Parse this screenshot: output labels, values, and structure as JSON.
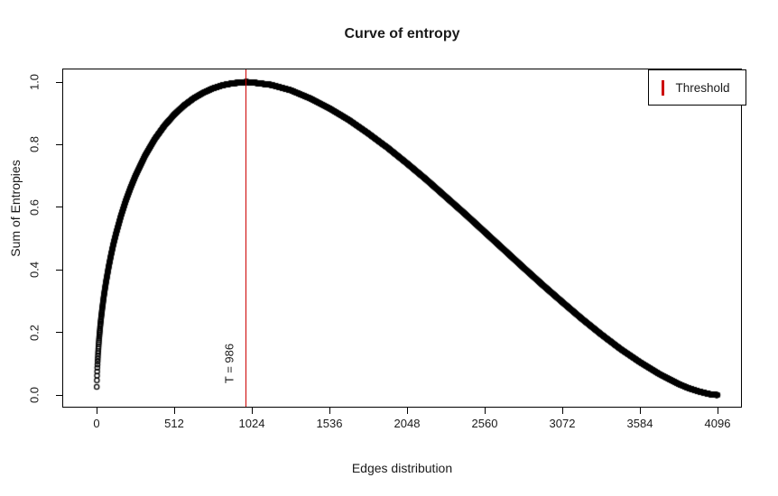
{
  "window": {
    "background": "#ffffff"
  },
  "chart_data": {
    "type": "scatter",
    "title": "Curve of entropy",
    "xlabel": "Edges distribution",
    "ylabel": "Sum of Entropies",
    "xlim": [
      0,
      4096
    ],
    "ylim": [
      0.0,
      1.0
    ],
    "x_ticks": [
      0,
      512,
      1024,
      1536,
      2048,
      2560,
      3072,
      3584,
      4096
    ],
    "y_ticks": [
      0.0,
      0.2,
      0.4,
      0.6,
      0.8,
      1.0
    ],
    "grid": false,
    "marker": "open-circle",
    "point_color": "#000000",
    "n_points": 4096,
    "threshold": {
      "x": 986,
      "label": "T = 986",
      "color": "#cc0000"
    },
    "legend": {
      "position": "topright",
      "entries": [
        {
          "label": "Threshold",
          "marker": "vertical-bar",
          "color": "#cc0000"
        }
      ]
    },
    "series": [
      {
        "name": "Sum of Entropies",
        "points": [
          [
            1,
            0.026
          ],
          [
            2,
            0.047
          ],
          [
            3,
            0.062
          ],
          [
            4,
            0.075
          ],
          [
            5,
            0.087
          ],
          [
            6,
            0.097
          ],
          [
            7,
            0.107
          ],
          [
            8,
            0.116
          ],
          [
            10,
            0.133
          ],
          [
            12,
            0.148
          ],
          [
            14,
            0.162
          ],
          [
            16,
            0.175
          ],
          [
            20,
            0.198
          ],
          [
            24,
            0.219
          ],
          [
            28,
            0.238
          ],
          [
            32,
            0.255
          ],
          [
            40,
            0.287
          ],
          [
            48,
            0.316
          ],
          [
            56,
            0.342
          ],
          [
            64,
            0.366
          ],
          [
            80,
            0.41
          ],
          [
            96,
            0.449
          ],
          [
            112,
            0.484
          ],
          [
            128,
            0.515
          ],
          [
            160,
            0.571
          ],
          [
            192,
            0.62
          ],
          [
            224,
            0.662
          ],
          [
            256,
            0.7
          ],
          [
            320,
            0.765
          ],
          [
            384,
            0.818
          ],
          [
            448,
            0.861
          ],
          [
            512,
            0.896
          ],
          [
            576,
            0.925
          ],
          [
            640,
            0.948
          ],
          [
            704,
            0.966
          ],
          [
            768,
            0.98
          ],
          [
            832,
            0.99
          ],
          [
            896,
            0.996
          ],
          [
            960,
            0.999
          ],
          [
            986,
            1.0
          ],
          [
            1024,
            0.999
          ],
          [
            1152,
            0.991
          ],
          [
            1280,
            0.974
          ],
          [
            1408,
            0.948
          ],
          [
            1536,
            0.916
          ],
          [
            1664,
            0.879
          ],
          [
            1792,
            0.836
          ],
          [
            1920,
            0.79
          ],
          [
            2048,
            0.74
          ],
          [
            2176,
            0.688
          ],
          [
            2304,
            0.633
          ],
          [
            2432,
            0.578
          ],
          [
            2560,
            0.521
          ],
          [
            2688,
            0.464
          ],
          [
            2816,
            0.407
          ],
          [
            2944,
            0.351
          ],
          [
            3072,
            0.297
          ],
          [
            3200,
            0.244
          ],
          [
            3328,
            0.194
          ],
          [
            3456,
            0.147
          ],
          [
            3584,
            0.105
          ],
          [
            3712,
            0.067
          ],
          [
            3840,
            0.035
          ],
          [
            3904,
            0.022
          ],
          [
            3968,
            0.012
          ],
          [
            4032,
            0.004
          ],
          [
            4064,
            0.001
          ],
          [
            4096,
            0.0
          ]
        ]
      }
    ]
  }
}
